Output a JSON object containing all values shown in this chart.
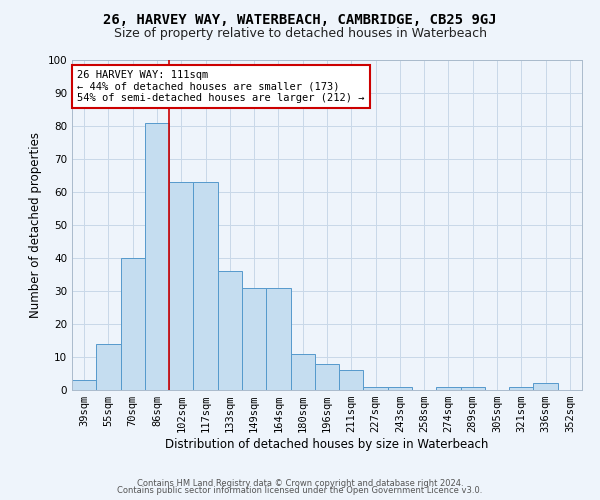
{
  "title1": "26, HARVEY WAY, WATERBEACH, CAMBRIDGE, CB25 9GJ",
  "title2": "Size of property relative to detached houses in Waterbeach",
  "xlabel": "Distribution of detached houses by size in Waterbeach",
  "ylabel": "Number of detached properties",
  "categories": [
    "39sqm",
    "55sqm",
    "70sqm",
    "86sqm",
    "102sqm",
    "117sqm",
    "133sqm",
    "149sqm",
    "164sqm",
    "180sqm",
    "196sqm",
    "211sqm",
    "227sqm",
    "243sqm",
    "258sqm",
    "274sqm",
    "289sqm",
    "305sqm",
    "321sqm",
    "336sqm",
    "352sqm"
  ],
  "values": [
    3,
    14,
    40,
    81,
    63,
    63,
    36,
    31,
    31,
    11,
    8,
    6,
    1,
    1,
    0,
    1,
    1,
    0,
    1,
    2,
    0
  ],
  "bar_color": "#c5ddf0",
  "bar_edge_color": "#5599cc",
  "vline_x": 3.5,
  "vline_color": "#cc0000",
  "annotation_text": "26 HARVEY WAY: 111sqm\n← 44% of detached houses are smaller (173)\n54% of semi-detached houses are larger (212) →",
  "annotation_box_color": "#ffffff",
  "annotation_box_edge": "#cc0000",
  "ylim": [
    0,
    100
  ],
  "yticks": [
    0,
    10,
    20,
    30,
    40,
    50,
    60,
    70,
    80,
    90,
    100
  ],
  "grid_color": "#c8d8e8",
  "background_color": "#eef4fb",
  "footer1": "Contains HM Land Registry data © Crown copyright and database right 2024.",
  "footer2": "Contains public sector information licensed under the Open Government Licence v3.0.",
  "title_fontsize": 10,
  "subtitle_fontsize": 9,
  "tick_fontsize": 7.5,
  "ylabel_fontsize": 8.5,
  "xlabel_fontsize": 8.5,
  "annotation_fontsize": 7.5,
  "footer_fontsize": 6
}
